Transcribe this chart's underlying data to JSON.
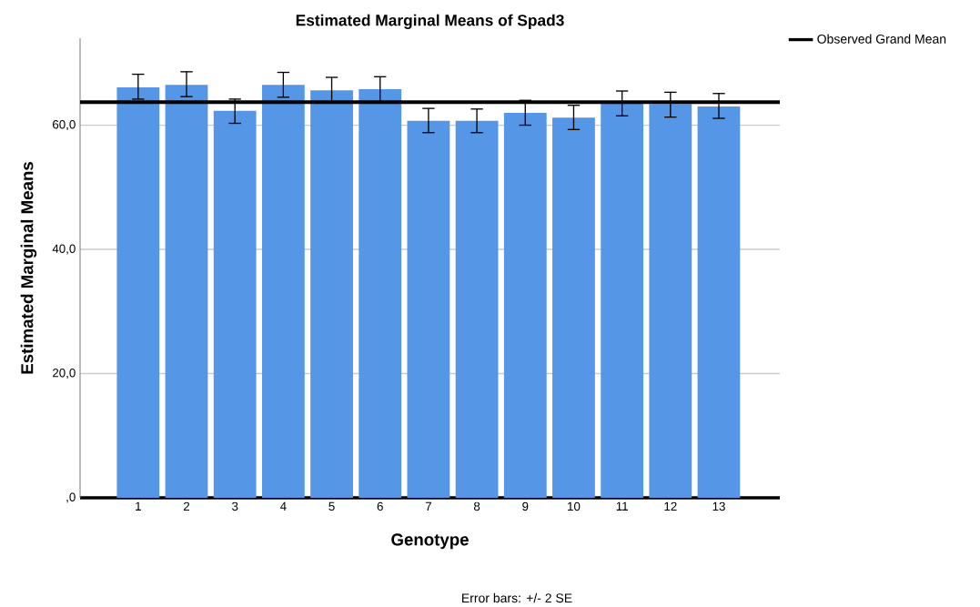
{
  "chart_data": {
    "type": "bar",
    "title": "Estimated Marginal Means of Spad3",
    "xlabel": "Genotype",
    "ylabel": "Estimated Marginal Means",
    "categories": [
      "1",
      "2",
      "3",
      "4",
      "5",
      "6",
      "7",
      "8",
      "9",
      "10",
      "11",
      "12",
      "13"
    ],
    "values": [
      66.1,
      66.5,
      62.3,
      66.5,
      65.6,
      65.8,
      60.7,
      60.7,
      62.0,
      61.2,
      63.5,
      63.4,
      63.0
    ],
    "errors": [
      [
        64.2,
        68.2
      ],
      [
        64.6,
        68.6
      ],
      [
        60.3,
        64.2
      ],
      [
        64.5,
        68.5
      ],
      [
        63.6,
        67.7
      ],
      [
        63.8,
        67.8
      ],
      [
        58.8,
        62.7
      ],
      [
        58.8,
        62.6
      ],
      [
        60.0,
        64.0
      ],
      [
        59.3,
        63.2
      ],
      [
        61.5,
        65.5
      ],
      [
        61.3,
        65.3
      ],
      [
        61.1,
        65.1
      ]
    ],
    "color": "#5596e6",
    "ylim": [
      0,
      74
    ],
    "yticks": [
      {
        "value": 0,
        "label": ",0"
      },
      {
        "value": 20,
        "label": "20,0"
      },
      {
        "value": 40,
        "label": "40,0"
      },
      {
        "value": 60,
        "label": "60,0"
      }
    ],
    "grid": "y",
    "ref_lines": [
      {
        "axis": "y",
        "value": 63.7,
        "label": "Observed Grand Mean",
        "color": "#000000"
      }
    ],
    "legend": "top right",
    "annotations": [
      "Error bars: +/- 2 SE"
    ]
  }
}
